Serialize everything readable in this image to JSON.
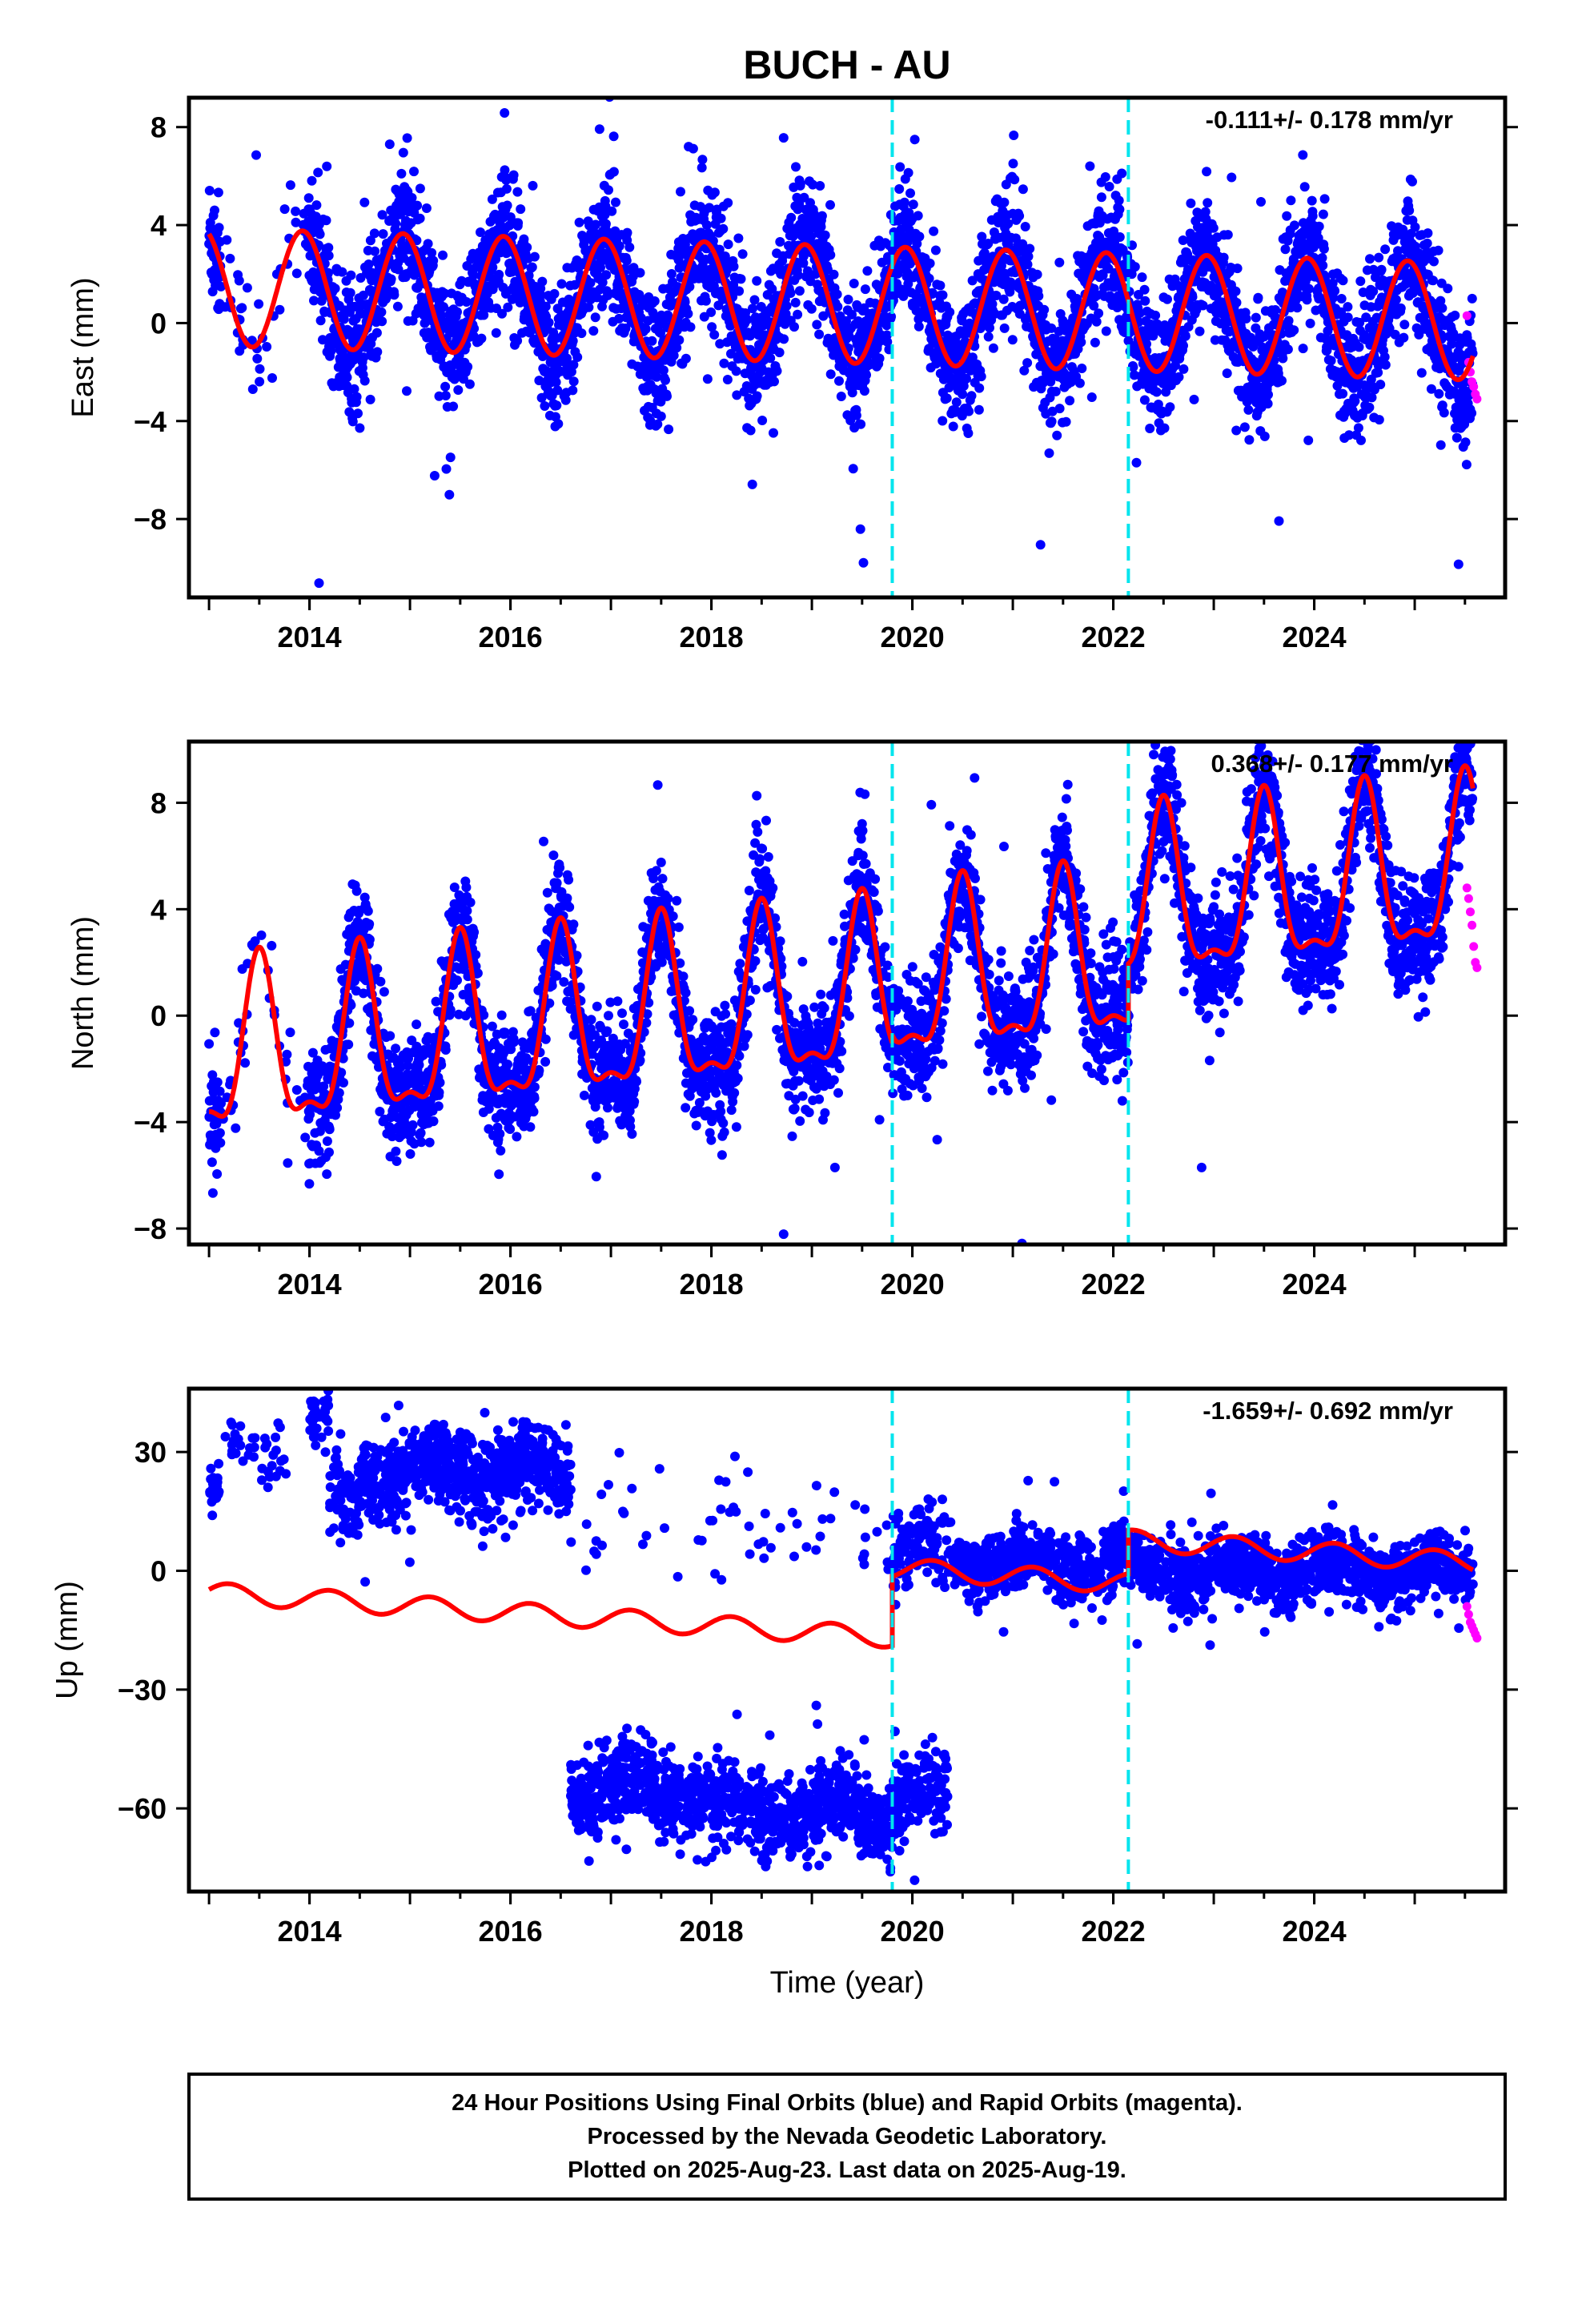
{
  "title": "BUCH - AU",
  "xlabel": "Time (year)",
  "footer": [
    "24 Hour Positions Using Final Orbits (blue) and Rapid Orbits (magenta).",
    "Processed by the Nevada Geodetic Laboratory.",
    "Plotted on 2025-Aug-23. Last data on 2025-Aug-19."
  ],
  "colors": {
    "final_orbits": "#0000ff",
    "rapid_orbits": "#ff00ff",
    "model": "#ff0000",
    "event_lines": "#00e5ee",
    "frame": "#000000"
  },
  "chart_data": [
    {
      "type": "scatter",
      "panel": "east",
      "ylabel": "East (mm)",
      "rate_label": "-0.111+/- 0.178 mm/yr",
      "xlim": [
        2012.8,
        2025.9
      ],
      "ylim": [
        -11.2,
        9.2
      ],
      "x_ticks": [
        2014,
        2016,
        2018,
        2020,
        2022,
        2024
      ],
      "x_tick_labels": [
        "2014",
        "2016",
        "2018",
        "2020",
        "2022",
        "2024"
      ],
      "y_ticks": [
        8,
        4,
        0,
        -4,
        -8
      ],
      "y_tick_labels": [
        "8",
        "4",
        "0",
        "−4",
        "−8"
      ],
      "event_lines_x": [
        2019.8,
        2022.15
      ],
      "model": {
        "offset": 0.8,
        "trend": -0.111,
        "t0": 2019,
        "annual_amp": 2.4,
        "annual_phase_year": 2013.93,
        "semiannual_amp": 0,
        "semiannual_phase_year": 0,
        "steps": []
      },
      "scatter_noise_sd": 1.3,
      "data_start": 2013.0,
      "data_end": 2025.58,
      "daily_count": 4560,
      "rapid_orbits": {
        "x_start": 2025.52,
        "x_end": 2025.62,
        "values": [
          0.3,
          -1.6,
          -2.0,
          -2.4,
          -2.6,
          -2.9,
          -3.1
        ]
      }
    },
    {
      "type": "scatter",
      "panel": "north",
      "ylabel": "North (mm)",
      "rate_label": "0.368+/- 0.177 mm/yr",
      "xlim": [
        2012.8,
        2025.9
      ],
      "ylim": [
        -8.6,
        10.3
      ],
      "x_ticks": [
        2014,
        2016,
        2018,
        2020,
        2022,
        2024
      ],
      "x_tick_labels": [
        "2014",
        "2016",
        "2018",
        "2020",
        "2022",
        "2024"
      ],
      "y_ticks": [
        8,
        4,
        0,
        -4,
        -8
      ],
      "y_tick_labels": [
        "8",
        "4",
        "0",
        "−4",
        "−8"
      ],
      "event_lines_x": [
        2019.8,
        2022.15
      ],
      "model": {
        "offset": 0.5,
        "trend": 0.368,
        "t0": 2019,
        "annual_amp": 3.0,
        "annual_phase_year": 2013.5,
        "semiannual_amp": 1.1,
        "semiannual_phase_year": 2013.5,
        "steps": [
          [
            2019.8,
            0.3
          ],
          [
            2022.15,
            2.1
          ]
        ]
      },
      "scatter_noise_sd": 1.1,
      "data_start": 2013.0,
      "data_end": 2025.58,
      "daily_count": 4560,
      "rapid_orbits": {
        "x_start": 2025.52,
        "x_end": 2025.62,
        "values": [
          4.8,
          4.4,
          3.9,
          3.4,
          2.6,
          2.0,
          1.8
        ]
      }
    },
    {
      "type": "scatter",
      "panel": "up",
      "ylabel": "Up (mm)",
      "rate_label": "-1.659+/- 0.692 mm/yr",
      "xlim": [
        2012.8,
        2025.9
      ],
      "ylim": [
        -81,
        46
      ],
      "x_ticks": [
        2014,
        2016,
        2018,
        2020,
        2022,
        2024
      ],
      "x_tick_labels": [
        "2014",
        "2016",
        "2018",
        "2020",
        "2022",
        "2024"
      ],
      "y_ticks": [
        30,
        0,
        -30,
        -60
      ],
      "y_tick_labels": [
        "30",
        "0",
        "−30",
        "−60"
      ],
      "event_lines_x": [
        2019.8,
        2022.15
      ],
      "model": {
        "offset": -15.5,
        "trend": -1.659,
        "t0": 2019,
        "annual_amp": 2.6,
        "annual_phase_year": 2014.2,
        "semiannual_amp": 0,
        "semiannual_phase_year": 0,
        "steps": [
          [
            2019.8,
            17.5
          ],
          [
            2022.15,
            11.0
          ]
        ]
      },
      "scatter_noise_sd": 3.5,
      "clusters": [
        {
          "x_start": 2013.0,
          "x_end": 2013.1,
          "center": 19,
          "spread": 3,
          "count": 20
        },
        {
          "x_start": 2013.15,
          "x_end": 2013.8,
          "center": 30,
          "spread": 4,
          "count": 40
        },
        {
          "x_start": 2014.0,
          "x_end": 2014.2,
          "center": 37,
          "spread": 4,
          "count": 40
        },
        {
          "x_start": 2014.2,
          "x_end": 2014.5,
          "center": 15,
          "spread": 6,
          "count": 70
        },
        {
          "x_start": 2014.5,
          "x_end": 2016.6,
          "center": 25,
          "spread": 5,
          "count": 700
        },
        {
          "x_start": 2016.6,
          "x_end": 2019.8,
          "center": 10,
          "spread": 7,
          "count": 60
        },
        {
          "x_start": 2016.6,
          "x_end": 2018.0,
          "center": -55,
          "spread": 5,
          "count": 450
        },
        {
          "x_start": 2018.0,
          "x_end": 2019.8,
          "center": -61,
          "spread": 5,
          "count": 600
        },
        {
          "x_start": 2019.8,
          "x_end": 2020.35,
          "center": -58,
          "spread": 5,
          "count": 150
        },
        {
          "x_start": 2019.8,
          "x_end": 2020.4,
          "center": 5,
          "spread": 5,
          "count": 120
        },
        {
          "x_start": 2020.4,
          "x_end": 2022.15,
          "center": 2,
          "spread": 4,
          "count": 560
        },
        {
          "x_start": 2022.15,
          "x_end": 2025.58,
          "center": 0,
          "spread": 4,
          "count": 1150
        },
        {
          "x_start": 2013.0,
          "x_end": 2025.58,
          "center": -81,
          "spread": 0,
          "count": 0
        }
      ],
      "rapid_orbits": {
        "x_start": 2025.52,
        "x_end": 2025.62,
        "values": [
          -9,
          -11,
          -13,
          -14,
          -15,
          -16,
          -17
        ]
      }
    }
  ]
}
